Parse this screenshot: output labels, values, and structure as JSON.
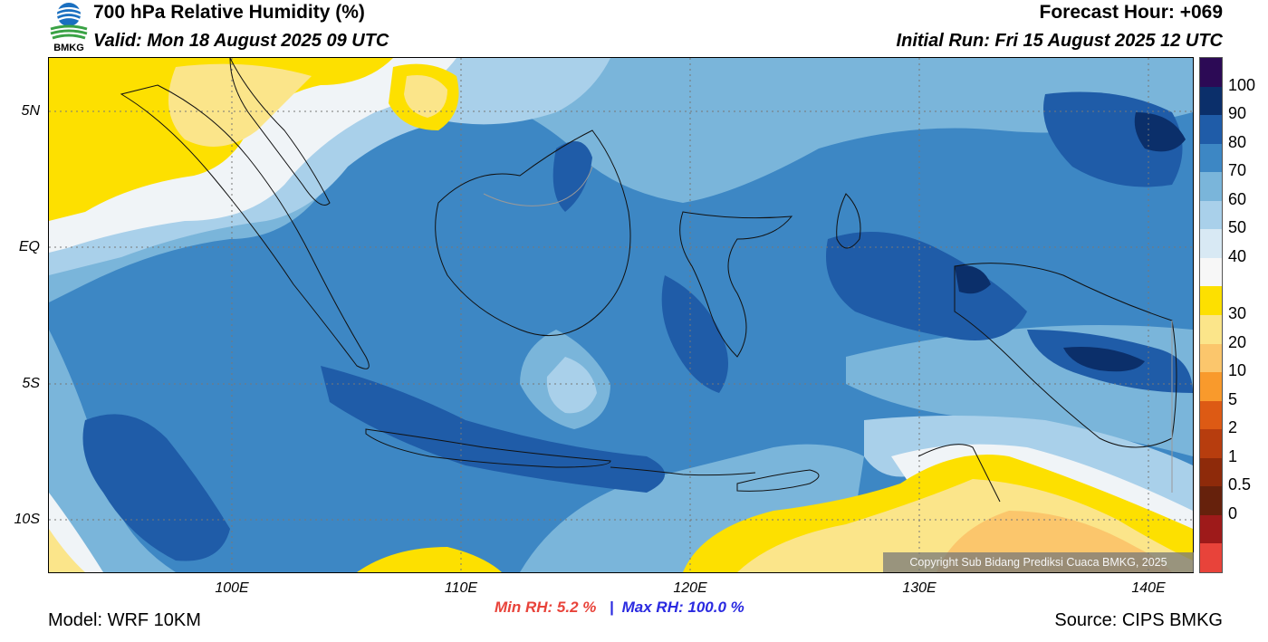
{
  "header": {
    "title": "700 hPa Relative Humidity (%)",
    "valid": "Valid: Mon 18 August 2025 09 UTC",
    "forecast_hour": "Forecast Hour: +069",
    "initial_run": "Initial Run: Fri 15 August 2025 12 UTC",
    "logo_text": "BMKG"
  },
  "map": {
    "lat_labels": [
      "5N",
      "EQ",
      "5S",
      "10S"
    ],
    "lon_labels": [
      "100E",
      "110E",
      "120E",
      "130E",
      "140E"
    ],
    "copyright": "Copyright Sub Bidang Prediksi Cuaca BMKG, 2025"
  },
  "colorbar": {
    "labels": [
      "100",
      "90",
      "80",
      "70",
      "60",
      "50",
      "40",
      "30",
      "20",
      "10",
      "5",
      "2",
      "1",
      "0.5",
      "0"
    ],
    "colors": [
      "#2c0a55",
      "#0b2f6a",
      "#1f5ca8",
      "#3d87c4",
      "#7ab5da",
      "#a9d0ea",
      "#d8e9f4",
      "#f7f7f7",
      "#fde000",
      "#fbe58a",
      "#fbc66c",
      "#f99a2c",
      "#dd5a14",
      "#b73d0e",
      "#8e2a0a",
      "#66210c",
      "#9e1a1a",
      "#e8433a"
    ]
  },
  "stats": {
    "min_label": "Min RH:   5.2 %",
    "separator": "|",
    "max_label": "Max RH: 100.0 %"
  },
  "footer": {
    "model": "Model: WRF 10KM",
    "source": "Source: CIPS BMKG"
  }
}
